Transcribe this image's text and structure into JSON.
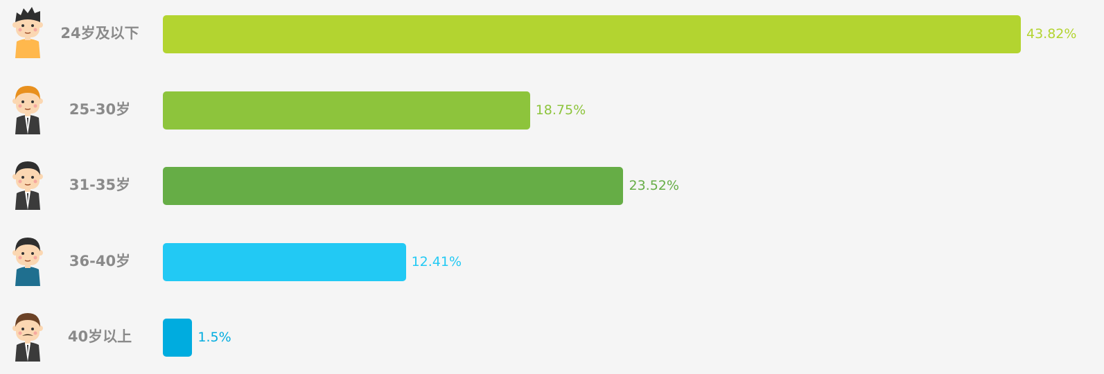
{
  "chart_data": {
    "type": "bar",
    "orientation": "horizontal",
    "categories": [
      "24岁及以下",
      "25-30岁",
      "31-35岁",
      "36-40岁",
      "40岁以上"
    ],
    "values": [
      43.82,
      18.75,
      23.52,
      12.41,
      1.5
    ],
    "value_labels": [
      "43.82%",
      "18.75%",
      "23.52%",
      "12.41%",
      "1.5%"
    ],
    "colors": [
      "#b3d430",
      "#8dc43c",
      "#66ad46",
      "#22c9f4",
      "#00acdf"
    ],
    "avatars": [
      "young-man-spiky-hair-icon",
      "man-orange-hair-suit-icon",
      "man-suit-icon",
      "man-blue-shirt-icon",
      "man-mustache-icon"
    ],
    "grid": false,
    "legend": "none"
  }
}
